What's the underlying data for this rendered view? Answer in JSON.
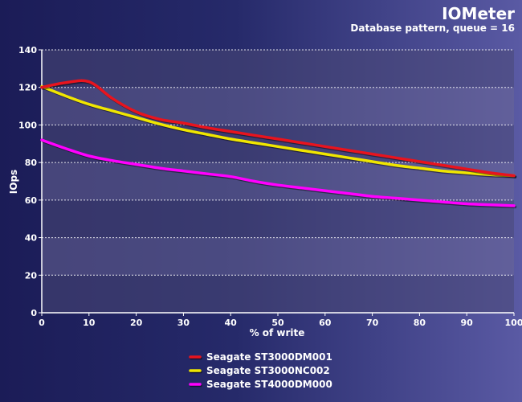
{
  "chart_data": {
    "type": "line",
    "title": "IOMeter",
    "subtitle": "Database pattern, queue = 16",
    "xlabel": "% of write",
    "ylabel": "IOps",
    "xlim": [
      0,
      100
    ],
    "ylim": [
      0,
      140
    ],
    "x_ticks": [
      0,
      10,
      20,
      30,
      40,
      50,
      60,
      70,
      80,
      90,
      100
    ],
    "y_ticks": [
      0,
      20,
      40,
      60,
      80,
      100,
      120,
      140
    ],
    "grid": true,
    "legend_position": "bottom-center",
    "series": [
      {
        "name": "Seagate ST3000DM001",
        "color": "#e8141e",
        "x": [
          0,
          5,
          10,
          15,
          20,
          25,
          30,
          35,
          40,
          45,
          50,
          55,
          60,
          65,
          70,
          75,
          80,
          85,
          90,
          95,
          100
        ],
        "y": [
          120,
          122.5,
          123,
          114,
          107,
          103,
          101,
          98.5,
          96.5,
          94.5,
          92.5,
          90.5,
          88.5,
          86.5,
          84.5,
          82.5,
          80.5,
          78.5,
          76.5,
          74.5,
          73
        ]
      },
      {
        "name": "Seagate ST3000NC002",
        "color": "#f0e600",
        "x": [
          0,
          5,
          10,
          15,
          20,
          25,
          30,
          35,
          40,
          45,
          50,
          55,
          60,
          65,
          70,
          75,
          80,
          85,
          90,
          95,
          100
        ],
        "y": [
          120.5,
          115.5,
          111,
          107.5,
          104,
          100.5,
          97.5,
          95,
          92.5,
          90.5,
          88.5,
          86.5,
          84.5,
          82.5,
          80.5,
          78.5,
          77,
          75.5,
          74.5,
          73.5,
          73
        ]
      },
      {
        "name": "Seagate ST4000DM000",
        "color": "#ff00ff",
        "x": [
          0,
          5,
          10,
          15,
          20,
          25,
          30,
          35,
          40,
          45,
          50,
          55,
          60,
          65,
          70,
          75,
          80,
          85,
          90,
          95,
          100
        ],
        "y": [
          92,
          87.5,
          83.5,
          81,
          79,
          77,
          75.5,
          74,
          72.5,
          70,
          68,
          66.5,
          65,
          63.5,
          62,
          61,
          60,
          59,
          58,
          57.5,
          57
        ]
      }
    ]
  }
}
